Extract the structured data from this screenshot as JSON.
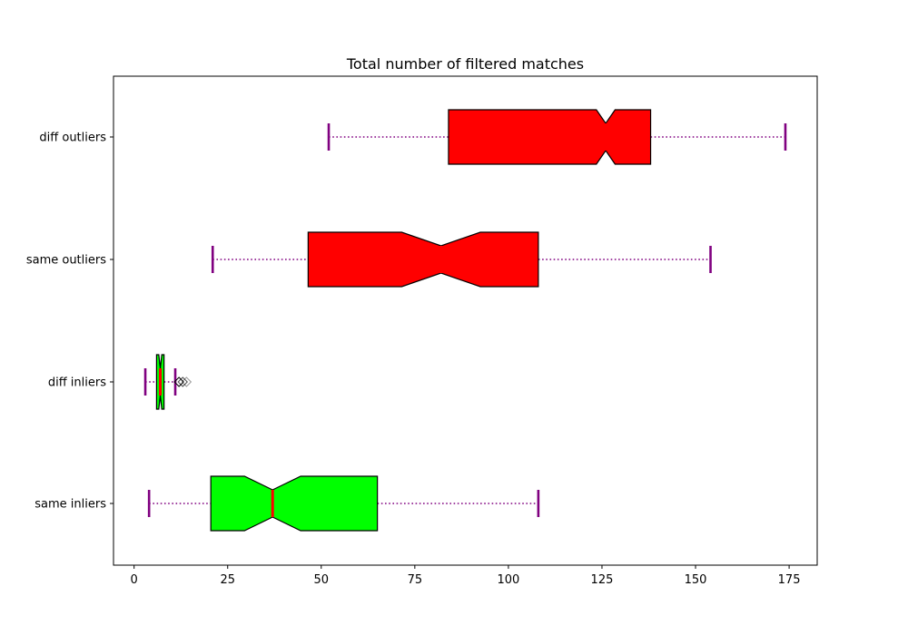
{
  "chart_data": {
    "type": "boxplot",
    "orientation": "horizontal",
    "notched": true,
    "title": "Total number of filtered matches",
    "xlabel": "",
    "ylabel": "",
    "xlim": [
      -5.5,
      182.5
    ],
    "xticks": [
      0,
      25,
      50,
      75,
      100,
      125,
      150,
      175
    ],
    "grid": false,
    "categories": [
      "same inliers",
      "diff inliers",
      "same outliers",
      "diff outliers"
    ],
    "boxes": [
      {
        "label": "same inliers",
        "whisker_low": 4,
        "q1": 20.5,
        "median": 37,
        "q3": 65,
        "whisker_high": 108,
        "notch_low": 29.5,
        "notch_high": 44.5,
        "fill": "#00ff00",
        "fliers": []
      },
      {
        "label": "diff inliers",
        "whisker_low": 3,
        "q1": 6,
        "median": 7,
        "q3": 8,
        "whisker_high": 11,
        "notch_low": 6.6,
        "notch_high": 7.4,
        "fill": "#00ff00",
        "fliers": [
          12,
          13,
          14
        ]
      },
      {
        "label": "same outliers",
        "whisker_low": 21,
        "q1": 46.5,
        "median": 82,
        "q3": 108,
        "whisker_high": 154,
        "notch_low": 71.5,
        "notch_high": 92.5,
        "fill": "#ff0000",
        "fliers": []
      },
      {
        "label": "diff outliers",
        "whisker_low": 52,
        "q1": 84,
        "median": 126,
        "q3": 138,
        "whisker_high": 174,
        "notch_low": 123.5,
        "notch_high": 128.5,
        "fill": "#ff0000",
        "fliers": []
      }
    ],
    "colors": {
      "median_line": "#ff0000",
      "whisker": "#800080",
      "cap": "#800080",
      "box_edge": "#000000",
      "flier_edge": "#000000"
    }
  }
}
